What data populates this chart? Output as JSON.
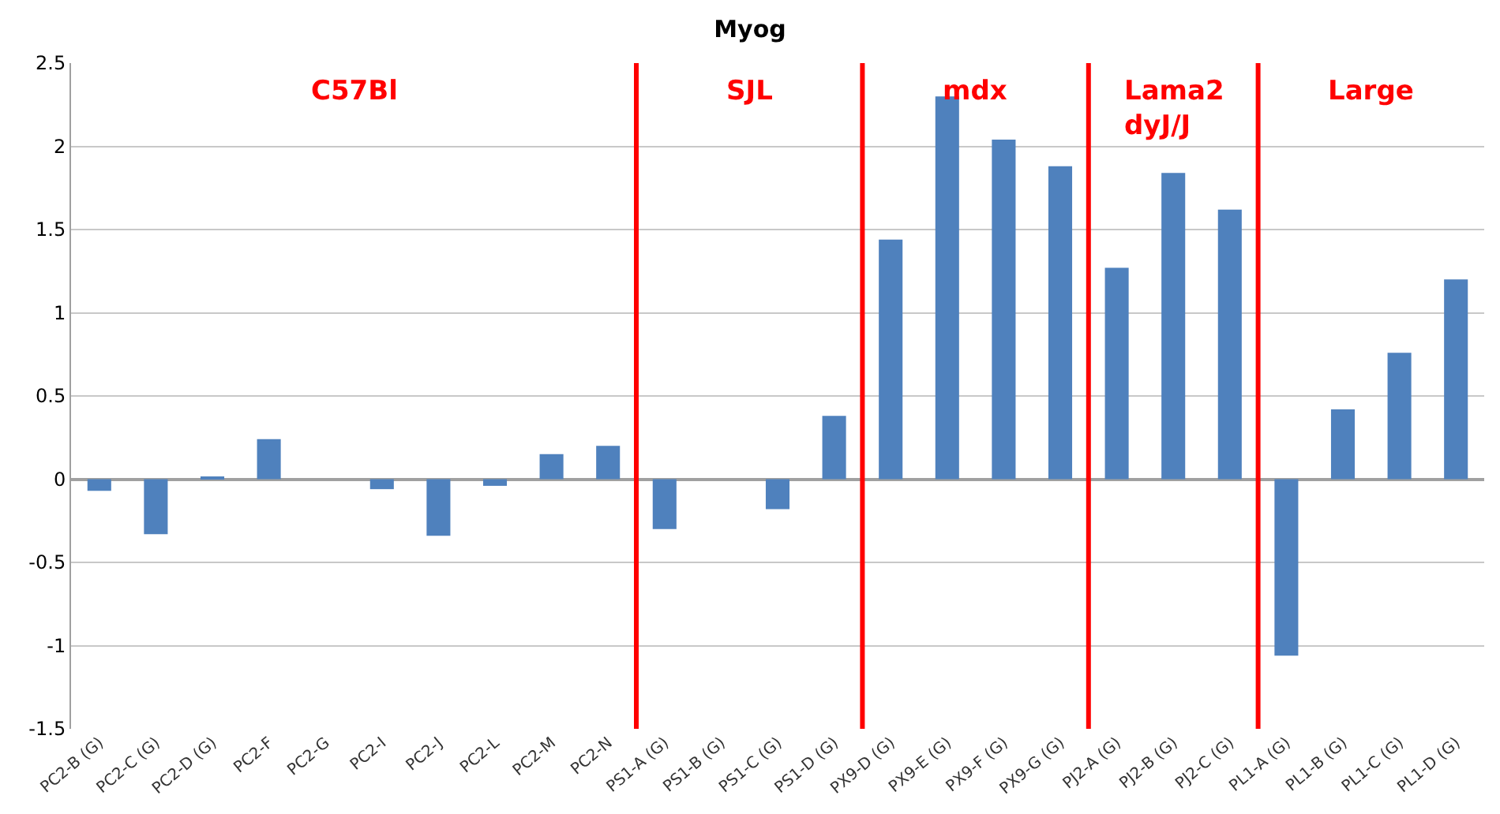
{
  "chart_data": {
    "type": "bar",
    "title": "Myog",
    "categories": [
      "PC2-B (G)",
      "PC2-C (G)",
      "PC2-D (G)",
      "PC2-F",
      "PC2-G",
      "PC2-I",
      "PC2-J",
      "PC2-L",
      "PC2-M",
      "PC2-N",
      "PS1-A (G)",
      "PS1-B (G)",
      "PS1-C (G)",
      "PS1-D (G)",
      "PX9-D (G)",
      "PX9-E (G)",
      "PX9-F (G)",
      "PX9-G (G)",
      "PJ2-A (G)",
      "PJ2-B (G)",
      "PJ2-C (G)",
      "PL1-A (G)",
      "PL1-B (G)",
      "PL1-C (G)",
      "PL1-D (G)"
    ],
    "values": [
      -0.07,
      -0.33,
      0.01,
      0.24,
      0,
      -0.06,
      -0.34,
      -0.04,
      0.15,
      0.2,
      -0.3,
      0,
      -0.18,
      0.38,
      1.44,
      2.3,
      2.04,
      1.88,
      1.27,
      1.84,
      1.62,
      -1.06,
      0.42,
      0.76,
      1.2
    ],
    "color": "#4f81bd",
    "ylim": [
      -1.5,
      2.5
    ],
    "yticks": [
      {
        "value": -1.5,
        "label": "-1.5"
      },
      {
        "value": -1,
        "label": "-1"
      },
      {
        "value": -0.5,
        "label": "-0.5"
      },
      0,
      0.5,
      1,
      1.5,
      2,
      2.5
    ],
    "grid": "y",
    "annotations": [
      "C57Bl",
      "SJL",
      "mdx",
      "Lama2\ndyJ/J",
      "Large"
    ]
  }
}
